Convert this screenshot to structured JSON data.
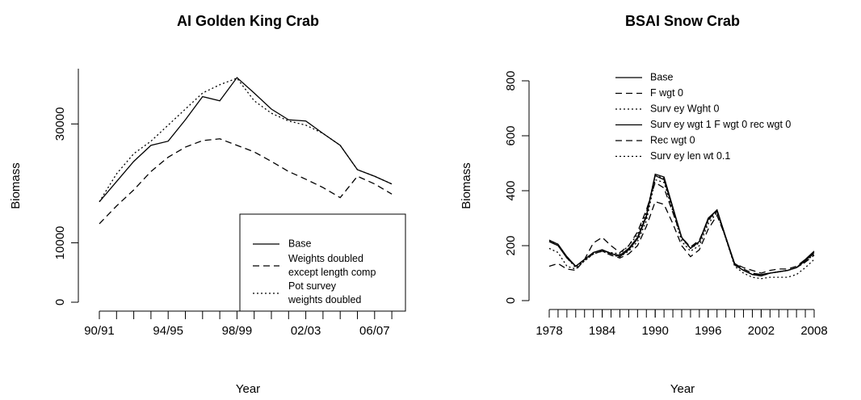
{
  "chart_data": [
    {
      "type": "line",
      "title": "AI Golden King Crab",
      "x_label": "Year",
      "y_label": "Biomass",
      "categories": [
        "90/91",
        null,
        null,
        null,
        "94/95",
        null,
        null,
        null,
        "98/99",
        null,
        null,
        null,
        "02/03",
        null,
        null,
        null,
        "06/07",
        null
      ],
      "ylim": [
        0,
        39300
      ],
      "yticks": [
        0,
        10000,
        30000
      ],
      "legend": "bottom-right",
      "series": [
        {
          "name": "Base",
          "color": "#000000",
          "dash": "solid",
          "values": [
            16900,
            20300,
            23700,
            26400,
            27100,
            30700,
            34600,
            33900,
            37800,
            35200,
            32500,
            30700,
            30500,
            28400,
            26400,
            22300,
            21200,
            19900
          ]
        },
        {
          "name": "Weights doubled\nexcept length comp",
          "color": "#000000",
          "dash": "dashed",
          "values": [
            13200,
            16200,
            18900,
            22000,
            24400,
            26100,
            27200,
            27500,
            26400,
            25300,
            23700,
            22000,
            20700,
            19300,
            17600,
            21200,
            19900,
            18200
          ]
        },
        {
          "name": "Pot survey\nweights doubled",
          "color": "#000000",
          "dash": "dotted",
          "values": [
            16900,
            21600,
            25000,
            27100,
            29800,
            32500,
            35200,
            36600,
            37700,
            33900,
            31800,
            30500,
            29800,
            28400,
            26400,
            22300,
            21200,
            19900
          ]
        }
      ]
    },
    {
      "type": "line",
      "title": "BSAI Snow Crab",
      "x_label": "Year",
      "y_label": "Biomass",
      "x": [
        1978,
        1979,
        1980,
        1981,
        1982,
        1983,
        1984,
        1985,
        1986,
        1987,
        1988,
        1989,
        1990,
        1991,
        1992,
        1993,
        1994,
        1995,
        1996,
        1997,
        1998,
        1999,
        2000,
        2001,
        2002,
        2003,
        2004,
        2005,
        2006,
        2007,
        2008
      ],
      "xlim": [
        1978,
        2008
      ],
      "xticks": [
        1978,
        1984,
        1990,
        1996,
        2002,
        2008
      ],
      "ylim": [
        0,
        800
      ],
      "yticks": [
        0,
        200,
        400,
        600,
        800
      ],
      "legend": "top-center",
      "series": [
        {
          "name": "Base",
          "color": "#000000",
          "dash": "solid",
          "values": [
            220,
            205,
            160,
            125,
            150,
            175,
            185,
            170,
            165,
            190,
            230,
            310,
            460,
            450,
            340,
            230,
            190,
            215,
            300,
            330,
            230,
            130,
            110,
            95,
            90,
            100,
            105,
            110,
            120,
            145,
            175
          ]
        },
        {
          "name": "F wgt 0",
          "color": "#000000",
          "dash": "dashed",
          "values": [
            125,
            135,
            115,
            110,
            150,
            210,
            230,
            200,
            175,
            200,
            250,
            330,
            430,
            410,
            320,
            230,
            195,
            220,
            295,
            325,
            230,
            135,
            120,
            110,
            100,
            110,
            115,
            115,
            125,
            150,
            170
          ]
        },
        {
          "name": "Surv ey Wght 0",
          "color": "#000000",
          "dash": "dotted",
          "values": [
            190,
            175,
            125,
            115,
            145,
            170,
            180,
            175,
            170,
            200,
            240,
            320,
            455,
            445,
            335,
            225,
            190,
            210,
            290,
            325,
            225,
            130,
            110,
            95,
            90,
            100,
            105,
            110,
            120,
            140,
            170
          ]
        },
        {
          "name": "Surv ey wgt 1 F wgt 0 rec wgt 0",
          "color": "#000000",
          "dash": "solid",
          "values": [
            215,
            200,
            155,
            125,
            150,
            175,
            185,
            172,
            160,
            185,
            225,
            305,
            455,
            440,
            335,
            230,
            190,
            215,
            295,
            330,
            230,
            130,
            110,
            95,
            95,
            100,
            105,
            110,
            120,
            150,
            180
          ]
        },
        {
          "name": "Rec wgt 0",
          "color": "#000000",
          "dash": "dashed",
          "values": [
            215,
            200,
            160,
            125,
            150,
            170,
            180,
            165,
            155,
            170,
            200,
            270,
            360,
            350,
            280,
            200,
            160,
            185,
            260,
            310,
            230,
            135,
            115,
            100,
            95,
            100,
            105,
            110,
            120,
            140,
            165
          ]
        },
        {
          "name": "Surv ey len wt 0.1",
          "color": "#000000",
          "dash": "dotted",
          "values": [
            220,
            205,
            155,
            120,
            145,
            170,
            180,
            165,
            160,
            180,
            215,
            290,
            440,
            430,
            325,
            215,
            180,
            200,
            280,
            320,
            225,
            125,
            100,
            85,
            80,
            85,
            85,
            85,
            95,
            120,
            150
          ]
        }
      ]
    }
  ]
}
